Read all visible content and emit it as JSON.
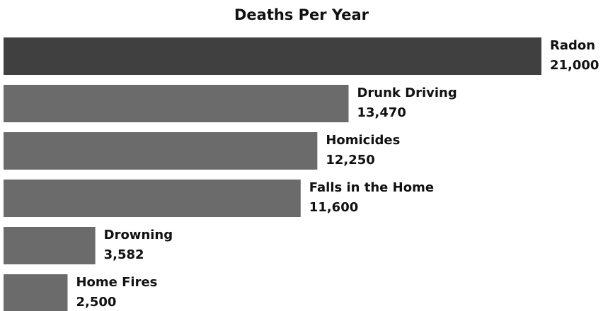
{
  "chart_data": {
    "type": "barh",
    "title": "Deaths Per Year",
    "categories": [
      "Radon",
      "Drunk Driving",
      "Homicides",
      "Falls in the Home",
      "Drowning",
      "Home Fires"
    ],
    "values": [
      21000,
      13470,
      12250,
      11600,
      3582,
      2500
    ],
    "value_labels": [
      "21,000",
      "13,470",
      "12,250",
      "11,600",
      "3,582",
      "2,500"
    ],
    "colors": [
      "#404040",
      "#6b6b6b",
      "#6b6b6b",
      "#6b6b6b",
      "#6b6b6b",
      "#6b6b6b"
    ],
    "xlim": [
      0,
      21000
    ]
  }
}
